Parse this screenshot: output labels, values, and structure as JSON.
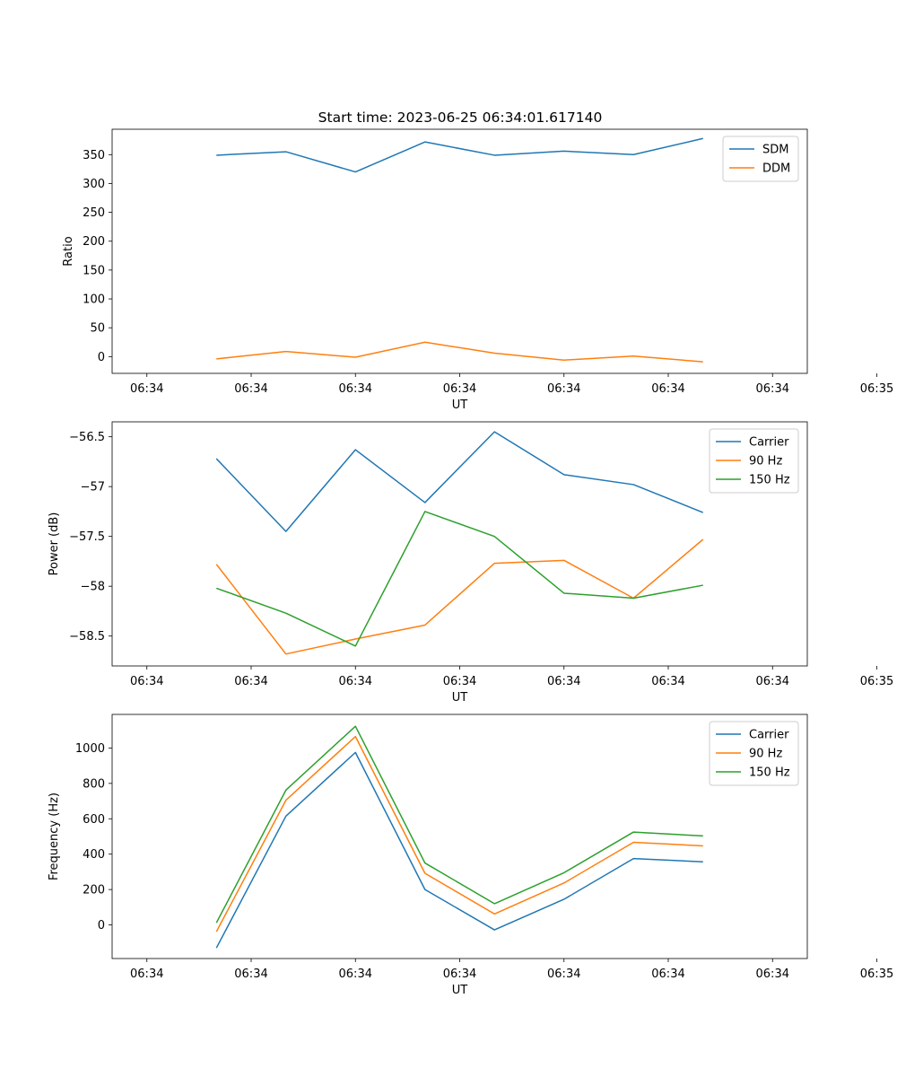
{
  "figure_title": "Start time: 2023-06-25 06:34:01.617140",
  "chart_data": [
    {
      "type": "line",
      "xlabel": "UT",
      "ylabel": "Ratio",
      "x_tick_labels": [
        "06:34",
        "06:34",
        "06:34",
        "06:34",
        "06:34",
        "06:34",
        "06:34",
        "06:35"
      ],
      "xlim": [
        -0.5,
        9.5
      ],
      "x": [
        1,
        2,
        3,
        4,
        5,
        6,
        7,
        8
      ],
      "ylim": [
        -29,
        394
      ],
      "yticks": [
        0,
        50,
        100,
        150,
        200,
        250,
        300,
        350
      ],
      "legend": "top-right",
      "series": [
        {
          "name": "SDM",
          "color": "#1f77b4",
          "values": [
            349,
            355,
            320,
            372,
            349,
            356,
            350,
            378
          ]
        },
        {
          "name": "DDM",
          "color": "#ff7f0e",
          "values": [
            -4,
            9,
            -1,
            25,
            6,
            -6,
            1,
            -9
          ]
        }
      ]
    },
    {
      "type": "line",
      "xlabel": "UT",
      "ylabel": "Power (dB)",
      "x_tick_labels": [
        "06:34",
        "06:34",
        "06:34",
        "06:34",
        "06:34",
        "06:34",
        "06:34",
        "06:35"
      ],
      "xlim": [
        -0.5,
        9.5
      ],
      "x": [
        1,
        2,
        3,
        4,
        5,
        6,
        7,
        8
      ],
      "ylim": [
        -58.8,
        -56.35
      ],
      "yticks": [
        -58.5,
        -58.0,
        -57.5,
        -57.0,
        -56.5
      ],
      "legend": "top-right",
      "series": [
        {
          "name": "Carrier",
          "color": "#1f77b4",
          "values": [
            -56.72,
            -57.45,
            -56.63,
            -57.16,
            -56.45,
            -56.88,
            -56.98,
            -57.26
          ]
        },
        {
          "name": "90 Hz",
          "color": "#ff7f0e",
          "values": [
            -57.78,
            -58.68,
            -58.53,
            -58.39,
            -57.77,
            -57.74,
            -58.12,
            -57.53
          ]
        },
        {
          "name": "150 Hz",
          "color": "#2ca02c",
          "values": [
            -58.02,
            -58.27,
            -58.6,
            -57.25,
            -57.5,
            -58.07,
            -58.12,
            -57.99
          ]
        }
      ]
    },
    {
      "type": "line",
      "xlabel": "UT",
      "ylabel": "Frequency (Hz)",
      "x_tick_labels": [
        "06:34",
        "06:34",
        "06:34",
        "06:34",
        "06:34",
        "06:34",
        "06:34",
        "06:35"
      ],
      "xlim": [
        -0.5,
        9.5
      ],
      "x": [
        1,
        2,
        3,
        4,
        5,
        6,
        7,
        8
      ],
      "ylim": [
        -190,
        1190
      ],
      "yticks": [
        0,
        200,
        400,
        600,
        800,
        1000
      ],
      "legend": "top-right",
      "series": [
        {
          "name": "Carrier",
          "color": "#1f77b4",
          "values": [
            -130,
            615,
            975,
            200,
            -28,
            145,
            375,
            357
          ]
        },
        {
          "name": "90 Hz",
          "color": "#ff7f0e",
          "values": [
            -38,
            705,
            1065,
            292,
            62,
            237,
            467,
            447
          ]
        },
        {
          "name": "150 Hz",
          "color": "#2ca02c",
          "values": [
            12,
            762,
            1123,
            350,
            120,
            295,
            525,
            503
          ]
        }
      ]
    }
  ]
}
